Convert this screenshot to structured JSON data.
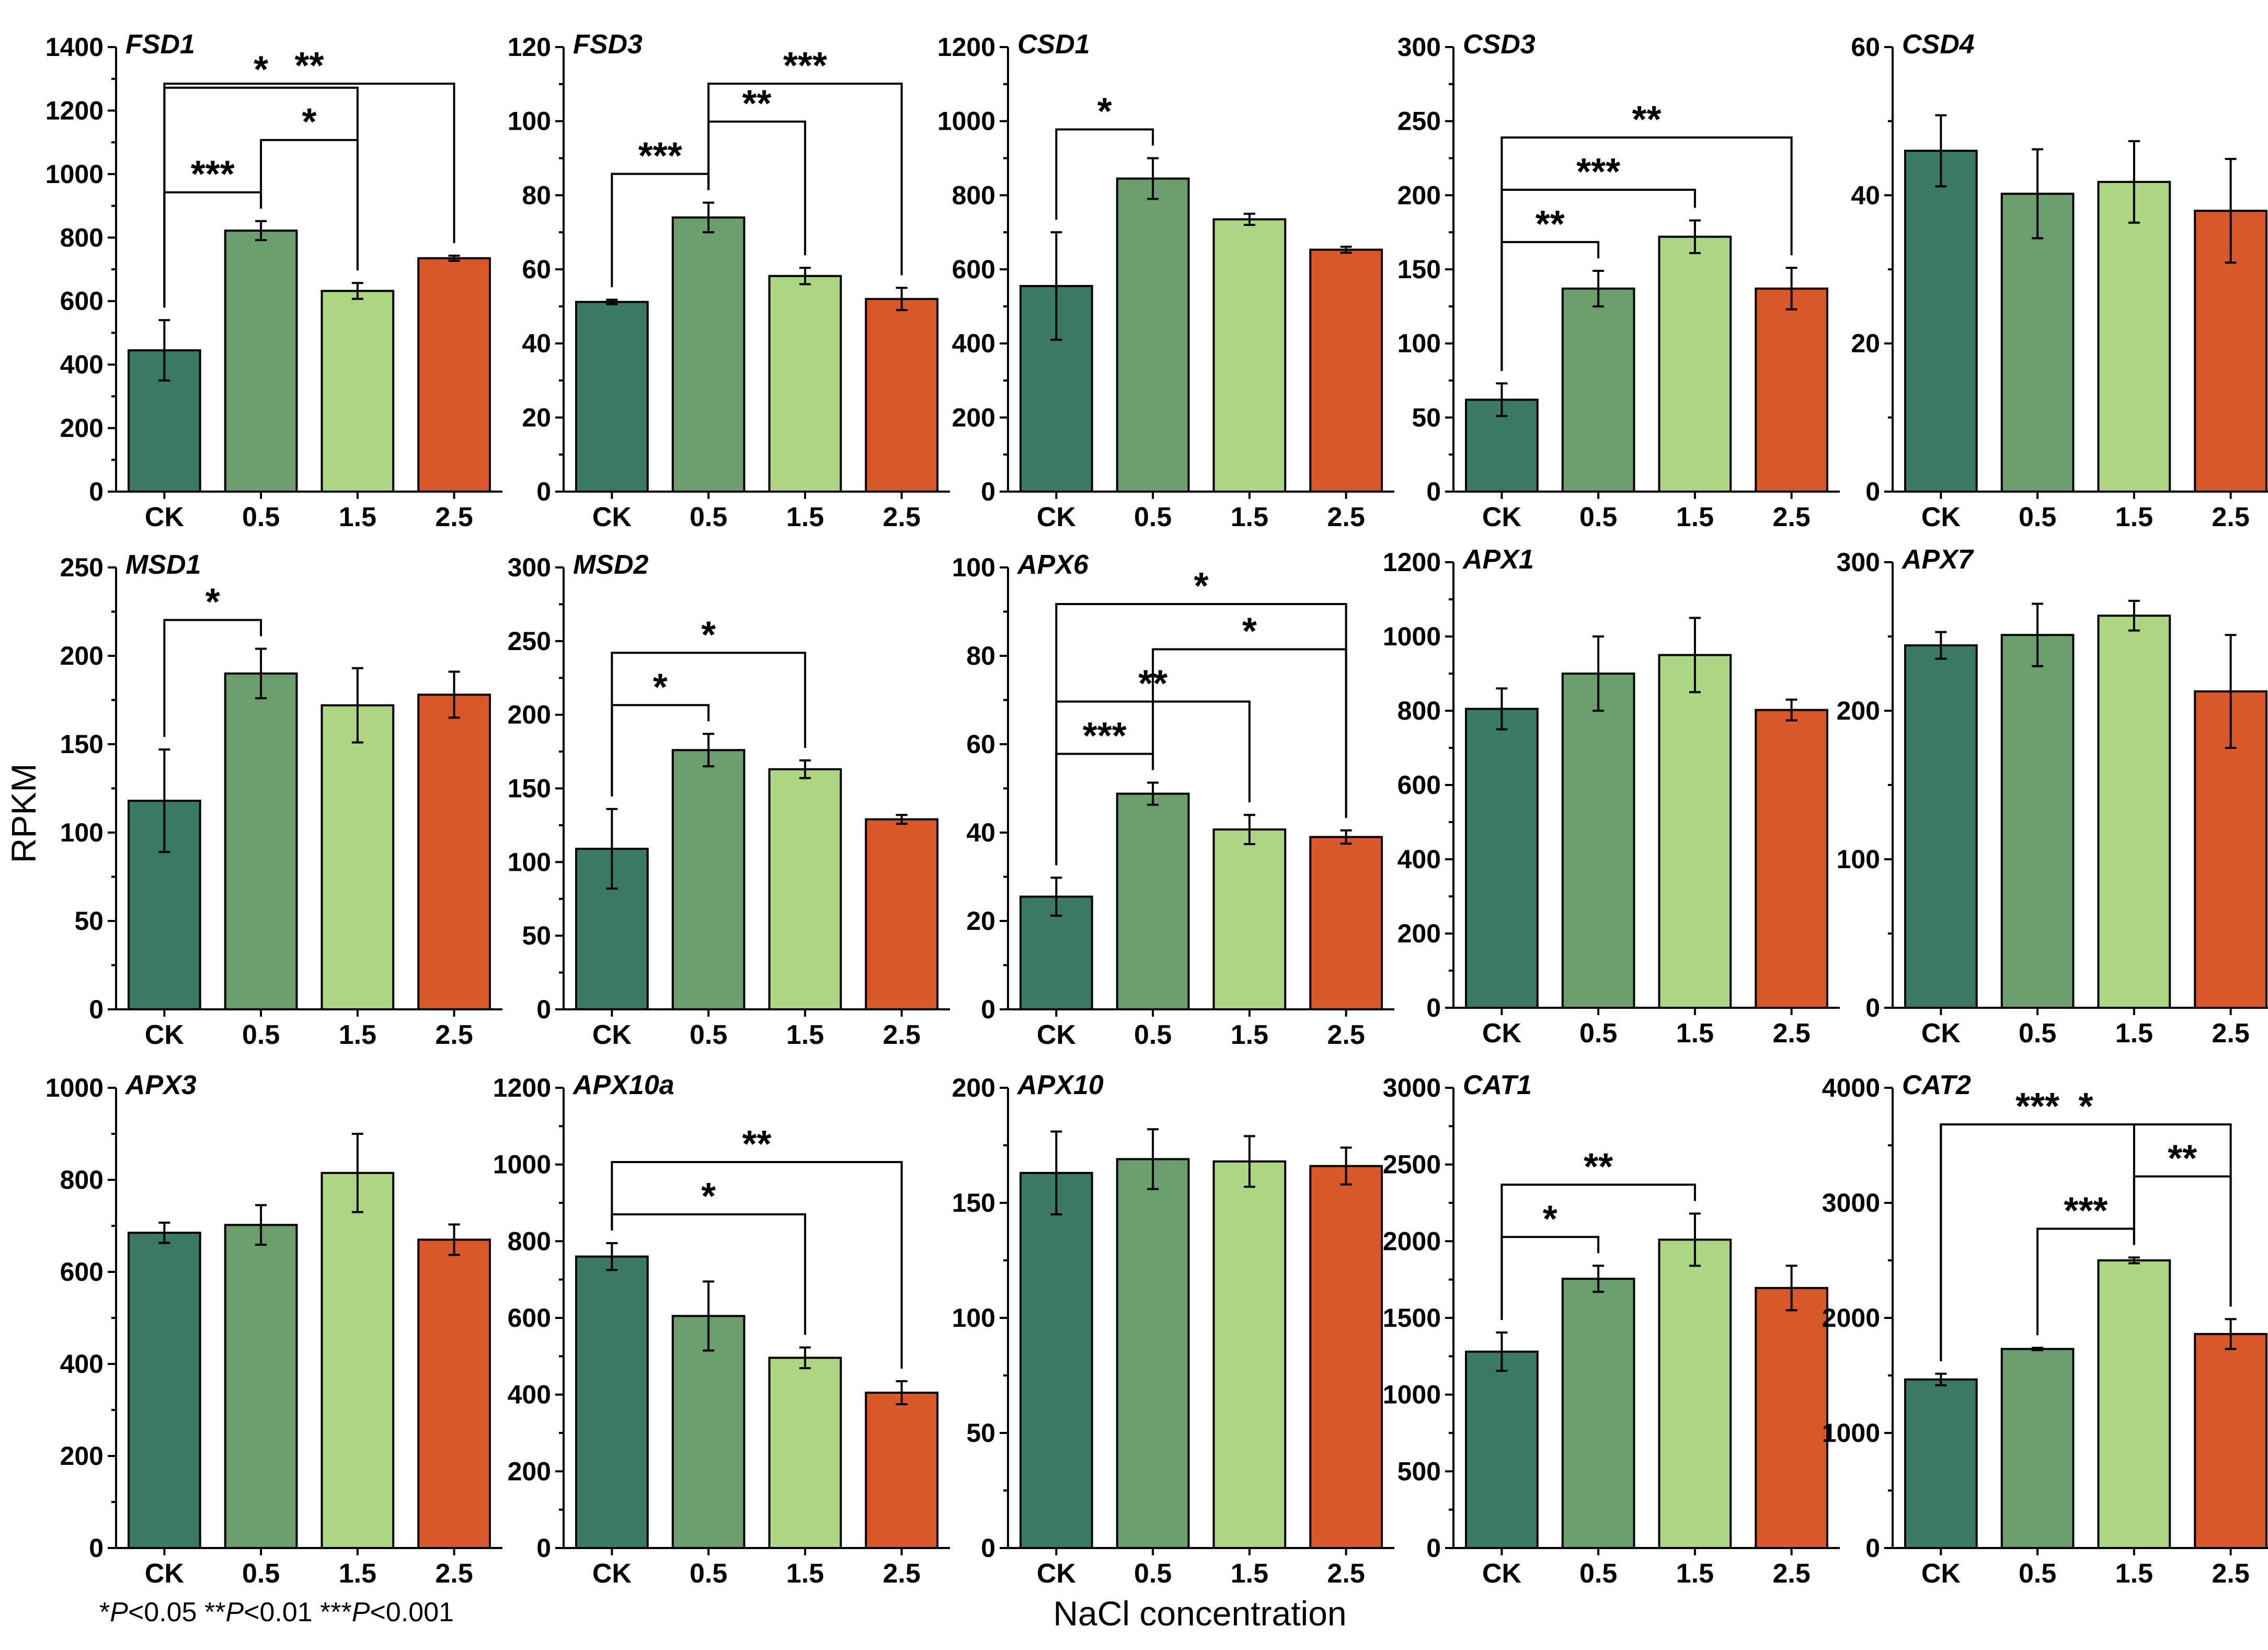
{
  "chart_data": {
    "type": "bar",
    "ylabel": "RPKM",
    "xlabel": "NaCl concentration",
    "categories": [
      "CK",
      "0.5",
      "1.5",
      "2.5"
    ],
    "colors": [
      "#3a7a62",
      "#6a9e6e",
      "#acd684",
      "#d8582c"
    ],
    "footnote": {
      "parts": [
        {
          "text": "*",
          "italic": false
        },
        {
          "text": "P",
          "italic": true
        },
        {
          "text": "<0.05 **",
          "italic": false
        },
        {
          "text": "P",
          "italic": true
        },
        {
          "text": "<0.01 ***",
          "italic": false
        },
        {
          "text": "P",
          "italic": true
        },
        {
          "text": "<0.001",
          "italic": false
        }
      ]
    },
    "panels": [
      {
        "gene": "FSD1",
        "ylim": [
          0,
          1400
        ],
        "ticks": [
          0,
          200,
          400,
          600,
          800,
          1000,
          1200,
          1400
        ],
        "values": [
          445,
          822,
          632,
          735
        ],
        "errors": [
          95,
          30,
          25,
          8
        ],
        "sig": [
          {
            "a": 0,
            "b": 1,
            "label": "***"
          },
          {
            "a": 1,
            "b": 2,
            "label": "*"
          },
          {
            "a": 0,
            "b": 2,
            "label": "*"
          },
          {
            "a": 0,
            "b": 3,
            "label": "**"
          }
        ]
      },
      {
        "gene": "FSD3",
        "ylim": [
          0,
          120
        ],
        "ticks": [
          0,
          20,
          40,
          60,
          80,
          100,
          120
        ],
        "values": [
          51.2,
          74,
          58.2,
          52
        ],
        "errors": [
          0.6,
          4,
          2.2,
          3
        ],
        "sig": [
          {
            "a": 0,
            "b": 1,
            "label": "***"
          },
          {
            "a": 1,
            "b": 2,
            "label": "**"
          },
          {
            "a": 1,
            "b": 3,
            "label": "***"
          }
        ]
      },
      {
        "gene": "CSD1",
        "ylim": [
          0,
          1200
        ],
        "ticks": [
          0,
          200,
          400,
          600,
          800,
          1000,
          1200
        ],
        "values": [
          555,
          845,
          735,
          653
        ],
        "errors": [
          145,
          55,
          15,
          8
        ],
        "sig": [
          {
            "a": 0,
            "b": 1,
            "label": "*"
          }
        ]
      },
      {
        "gene": "CSD3",
        "ylim": [
          0,
          300
        ],
        "ticks": [
          0,
          50,
          100,
          150,
          200,
          250,
          300
        ],
        "values": [
          62,
          137,
          172,
          137
        ],
        "errors": [
          11,
          12,
          11,
          14
        ],
        "sig": [
          {
            "a": 0,
            "b": 1,
            "label": "**"
          },
          {
            "a": 0,
            "b": 2,
            "label": "***"
          },
          {
            "a": 0,
            "b": 3,
            "label": "**"
          }
        ]
      },
      {
        "gene": "CSD4",
        "ylim": [
          0,
          60
        ],
        "ticks": [
          0,
          20,
          40,
          60
        ],
        "values": [
          46,
          40.2,
          41.8,
          37.9
        ],
        "errors": [
          4.8,
          6,
          5.5,
          7
        ],
        "sig": []
      },
      {
        "gene": "MSD1",
        "ylim": [
          0,
          250
        ],
        "ticks": [
          0,
          50,
          100,
          150,
          200,
          250
        ],
        "values": [
          118,
          190,
          172,
          178
        ],
        "errors": [
          29,
          14,
          21,
          13
        ],
        "sig": [
          {
            "a": 0,
            "b": 1,
            "label": "*"
          }
        ]
      },
      {
        "gene": "MSD2",
        "ylim": [
          0,
          300
        ],
        "ticks": [
          0,
          50,
          100,
          150,
          200,
          250,
          300
        ],
        "values": [
          109,
          176,
          163,
          129
        ],
        "errors": [
          27,
          11,
          6,
          3
        ],
        "sig": [
          {
            "a": 0,
            "b": 1,
            "label": "*"
          },
          {
            "a": 0,
            "b": 2,
            "label": "*"
          }
        ]
      },
      {
        "gene": "APX6",
        "ylim": [
          0,
          100
        ],
        "ticks": [
          0,
          20,
          40,
          60,
          80,
          100
        ],
        "values": [
          25.5,
          48.8,
          40.7,
          39
        ],
        "errors": [
          4.3,
          2.5,
          3.3,
          1.5
        ],
        "sig": [
          {
            "a": 0,
            "b": 1,
            "label": "***"
          },
          {
            "a": 0,
            "b": 2,
            "label": "**"
          },
          {
            "a": 1,
            "b": 3,
            "label": "*"
          },
          {
            "a": 0,
            "b": 3,
            "label": "*"
          }
        ]
      },
      {
        "gene": "APX1",
        "ylim": [
          0,
          1200
        ],
        "ticks": [
          0,
          200,
          400,
          600,
          800,
          1000,
          1200
        ],
        "values": [
          805,
          900,
          950,
          802
        ],
        "errors": [
          55,
          100,
          100,
          28
        ],
        "sig": []
      },
      {
        "gene": "APX7",
        "ylim": [
          0,
          300
        ],
        "ticks": [
          0,
          100,
          200,
          300
        ],
        "values": [
          244,
          251,
          264,
          213
        ],
        "errors": [
          9,
          21,
          10,
          38
        ],
        "sig": []
      },
      {
        "gene": "APX3",
        "ylim": [
          0,
          1000
        ],
        "ticks": [
          0,
          200,
          400,
          600,
          800,
          1000
        ],
        "values": [
          685,
          702,
          815,
          670
        ],
        "errors": [
          22,
          43,
          85,
          33
        ],
        "sig": []
      },
      {
        "gene": "APX10a",
        "ylim": [
          0,
          1200
        ],
        "ticks": [
          0,
          200,
          400,
          600,
          800,
          1000,
          1200
        ],
        "values": [
          760,
          605,
          496,
          405
        ],
        "errors": [
          35,
          90,
          27,
          30
        ],
        "sig": [
          {
            "a": 0,
            "b": 2,
            "label": "*"
          },
          {
            "a": 0,
            "b": 3,
            "label": "**"
          }
        ]
      },
      {
        "gene": "APX10",
        "ylim": [
          0,
          200
        ],
        "ticks": [
          0,
          50,
          100,
          150,
          200
        ],
        "values": [
          163,
          169,
          168,
          166
        ],
        "errors": [
          18,
          13,
          11,
          8
        ],
        "sig": []
      },
      {
        "gene": "CAT1",
        "ylim": [
          0,
          3000
        ],
        "ticks": [
          0,
          500,
          1000,
          1500,
          2000,
          2500,
          3000
        ],
        "values": [
          1280,
          1755,
          2010,
          1695
        ],
        "errors": [
          125,
          85,
          170,
          145
        ],
        "sig": [
          {
            "a": 0,
            "b": 1,
            "label": "*"
          },
          {
            "a": 0,
            "b": 2,
            "label": "**"
          }
        ]
      },
      {
        "gene": "CAT2",
        "ylim": [
          0,
          4000
        ],
        "ticks": [
          0,
          1000,
          2000,
          3000,
          4000
        ],
        "values": [
          1465,
          1730,
          2500,
          1860
        ],
        "errors": [
          50,
          10,
          25,
          130
        ],
        "sig": [
          {
            "a": 1,
            "b": 2,
            "label": "***"
          },
          {
            "a": 2,
            "b": 3,
            "label": "**"
          },
          {
            "a": 0,
            "b": 2,
            "label": "***"
          },
          {
            "a": 0,
            "b": 3,
            "label": "*"
          }
        ]
      }
    ]
  }
}
